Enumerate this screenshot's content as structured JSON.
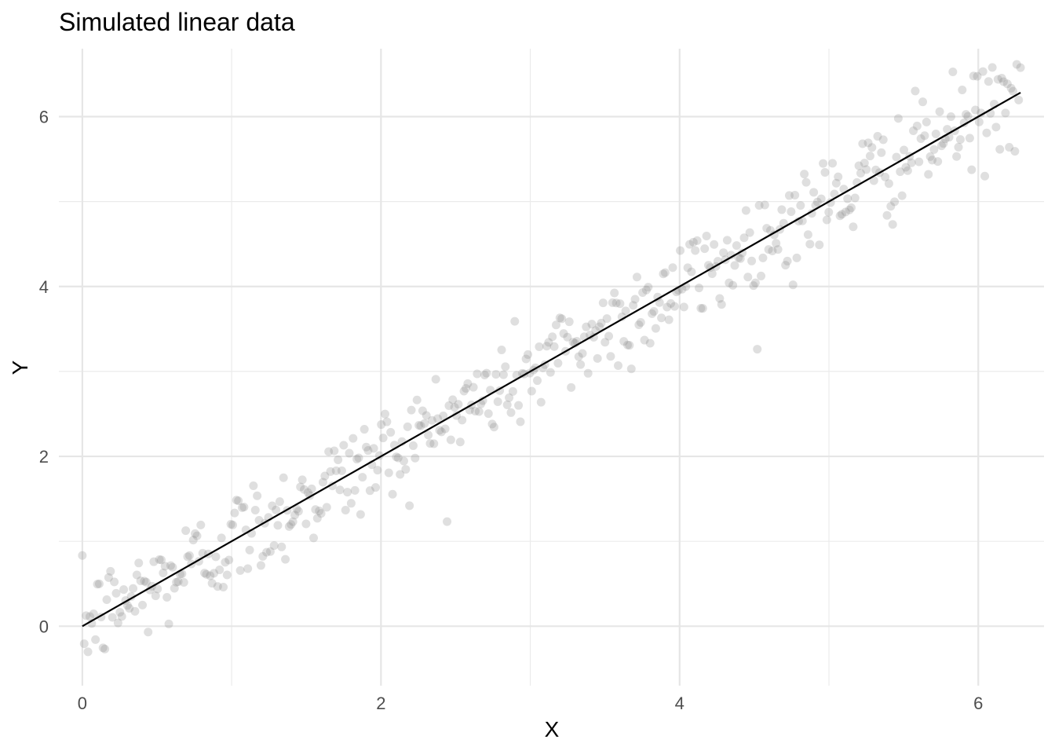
{
  "chart_data": {
    "type": "scatter",
    "title": "Simulated linear data",
    "xlabel": "X",
    "ylabel": "Y",
    "xlim": [
      -0.1571,
      6.4403
    ],
    "ylim": [
      -0.7,
      6.8
    ],
    "x_ticks": [
      0,
      2,
      4,
      6
    ],
    "x_tick_labels": [
      "0",
      "2",
      "4",
      "6"
    ],
    "x_minor_ticks": [
      1,
      3,
      5
    ],
    "y_ticks": [
      0,
      2,
      4,
      6
    ],
    "y_tick_labels": [
      "0",
      "2",
      "4",
      "6"
    ],
    "y_minor_ticks": [
      1,
      3,
      5
    ],
    "grid": true,
    "point_color": "#7f7f7f",
    "point_opacity": 0.25,
    "line_color": "#000000",
    "fit_line": {
      "slope": 1.0,
      "intercept": 0.0,
      "x_range": [
        0,
        6.283
      ]
    },
    "points": {
      "n": 500,
      "x_range": [
        0,
        6.283
      ],
      "model": "y = x + noise",
      "noise_sd": 0.3
    }
  }
}
